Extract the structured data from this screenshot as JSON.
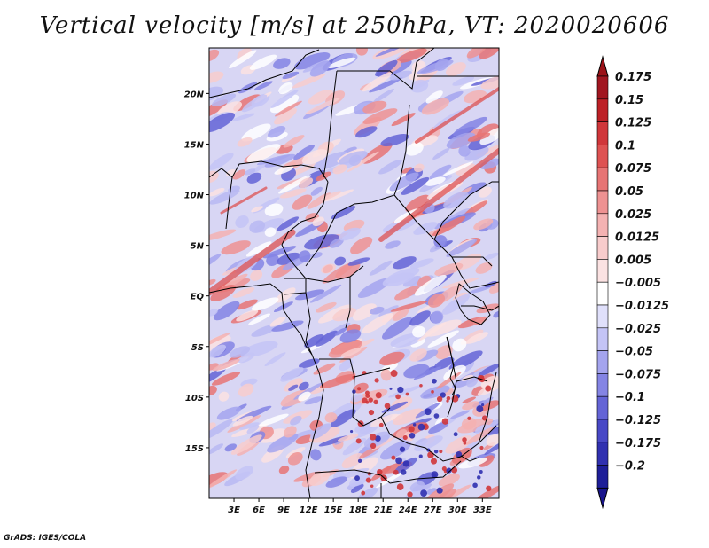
{
  "title": "Vertical velocity [m/s] at 250hPa, VT: 2020020606",
  "credit": "GrADS: IGES/COLA",
  "map": {
    "lon_range": [
      0,
      35
    ],
    "lat_range": [
      -20,
      24.5
    ],
    "lat_ticks": [
      {
        "value": 20,
        "label": "20N"
      },
      {
        "value": 15,
        "label": "15N"
      },
      {
        "value": 10,
        "label": "10N"
      },
      {
        "value": 5,
        "label": "5N"
      },
      {
        "value": 0,
        "label": "EQ"
      },
      {
        "value": -5,
        "label": "5S"
      },
      {
        "value": -10,
        "label": "10S"
      },
      {
        "value": -15,
        "label": "15S"
      }
    ],
    "lon_ticks": [
      {
        "value": 3,
        "label": "3E"
      },
      {
        "value": 6,
        "label": "6E"
      },
      {
        "value": 9,
        "label": "9E"
      },
      {
        "value": 12,
        "label": "12E"
      },
      {
        "value": 15,
        "label": "15E"
      },
      {
        "value": 18,
        "label": "18E"
      },
      {
        "value": 21,
        "label": "21E"
      },
      {
        "value": 24,
        "label": "24E"
      },
      {
        "value": 27,
        "label": "27E"
      },
      {
        "value": 30,
        "label": "30E"
      },
      {
        "value": 33,
        "label": "33E"
      }
    ]
  },
  "colorbar": {
    "levels": [
      {
        "label": "0.175",
        "color": "#a11620"
      },
      {
        "label": "0.15",
        "color": "#bd2026"
      },
      {
        "label": "0.125",
        "color": "#d0363a"
      },
      {
        "label": "0.1",
        "color": "#de5252"
      },
      {
        "label": "0.075",
        "color": "#e77474"
      },
      {
        "label": "0.05",
        "color": "#ee9292"
      },
      {
        "label": "0.025",
        "color": "#f4b2b2"
      },
      {
        "label": "0.0125",
        "color": "#f8cccc"
      },
      {
        "label": "0.005",
        "color": "#fbe2e2"
      },
      {
        "label": "−0.005",
        "color": "#ffffff"
      },
      {
        "label": "−0.0125",
        "color": "#e0e0fb"
      },
      {
        "label": "−0.025",
        "color": "#c4c4f6"
      },
      {
        "label": "−0.05",
        "color": "#a4a4ee"
      },
      {
        "label": "−0.075",
        "color": "#8484e4"
      },
      {
        "label": "−0.1",
        "color": "#6464d6"
      },
      {
        "label": "−0.125",
        "color": "#4848c6"
      },
      {
        "label": "−0.175",
        "color": "#3030b0"
      },
      {
        "label": "−0.2",
        "color": "#1e1e98"
      }
    ],
    "top_color": "#9b1218",
    "bottom_color": "#18148c"
  }
}
